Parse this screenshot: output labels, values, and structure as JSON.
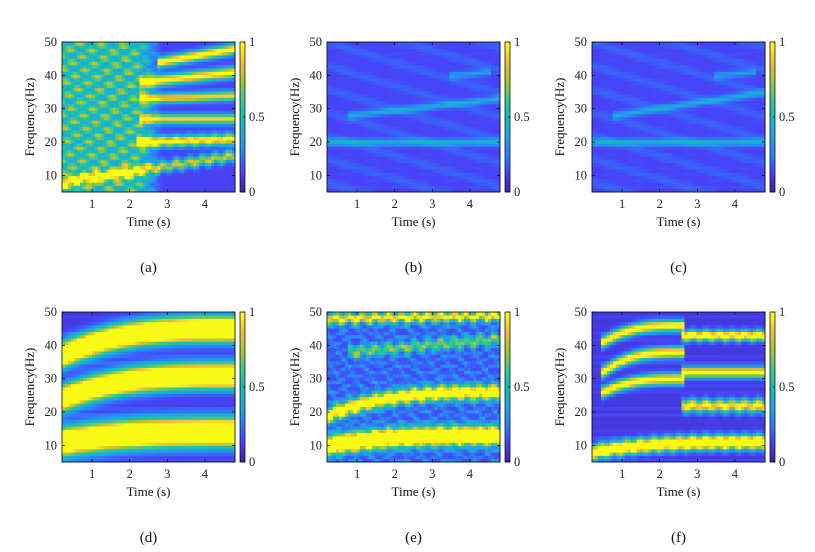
{
  "figure": {
    "colormap": [
      "#3e26a8",
      "#4743f8",
      "#2c82f9",
      "#1fa8de",
      "#13bfb5",
      "#3dcb85",
      "#a6c731",
      "#f2bc38",
      "#f9fb15"
    ],
    "colorbar_ticks": [
      "0",
      "0.5",
      "1"
    ],
    "colorbar_range": [
      0,
      1
    ]
  },
  "chart_data": [
    {
      "type": "heatmap",
      "panel": "(a)",
      "caption": "(a)",
      "xlabel": "Time (s)",
      "ylabel": "Frequency(Hz)",
      "xlim": [
        0.2,
        4.8
      ],
      "ylim": [
        5,
        50
      ],
      "xticks": [
        1,
        2,
        3,
        4
      ],
      "xtick_labels": [
        "1",
        "2",
        "3",
        "4"
      ],
      "yticks": [
        10,
        20,
        30,
        40,
        50
      ],
      "ytick_labels": [
        "10",
        "20",
        "30",
        "40",
        "50"
      ],
      "pattern": "dense-crosshatch-then-bands",
      "ridges": [
        {
          "start": [
            2.2,
            20
          ],
          "end": [
            4.8,
            21
          ],
          "width": 1.6,
          "amp": 0.9,
          "wiggle": 0.2
        },
        {
          "start": [
            2.3,
            27
          ],
          "end": [
            4.8,
            27
          ],
          "width": 1.4,
          "amp": 0.8
        },
        {
          "start": [
            2.3,
            33
          ],
          "end": [
            4.8,
            34
          ],
          "width": 1.4,
          "amp": 0.8
        },
        {
          "start": [
            2.3,
            38
          ],
          "end": [
            4.8,
            41
          ],
          "width": 1.6,
          "amp": 0.9
        },
        {
          "start": [
            2.8,
            44
          ],
          "end": [
            4.8,
            48
          ],
          "width": 1.5,
          "amp": 0.95
        },
        {
          "start": [
            0.2,
            8
          ],
          "end": [
            4.8,
            16
          ],
          "width": 1.5,
          "amp": 0.7,
          "wiggle": 0.5
        }
      ]
    },
    {
      "type": "heatmap",
      "panel": "(b)",
      "caption": "(b)",
      "xlabel": "Time (s)",
      "ylabel": "Frequency(Hz)",
      "xlim": [
        0.2,
        4.8
      ],
      "ylim": [
        5,
        50
      ],
      "xticks": [
        1,
        2,
        3,
        4
      ],
      "xtick_labels": [
        "1",
        "2",
        "3",
        "4"
      ],
      "yticks": [
        10,
        20,
        30,
        40,
        50
      ],
      "ytick_labels": [
        "10",
        "20",
        "30",
        "40",
        "50"
      ],
      "pattern": "faint-stripes",
      "ridges": [
        {
          "start": [
            0.2,
            20
          ],
          "end": [
            4.8,
            20
          ],
          "width": 1.0,
          "amp": 0.3
        },
        {
          "start": [
            0.8,
            28
          ],
          "end": [
            4.8,
            33
          ],
          "width": 1.0,
          "amp": 0.25
        },
        {
          "start": [
            3.5,
            40
          ],
          "end": [
            4.5,
            41
          ],
          "width": 1.0,
          "amp": 0.2
        }
      ]
    },
    {
      "type": "heatmap",
      "panel": "(c)",
      "caption": "(c)",
      "xlabel": "Time (s)",
      "ylabel": "Frequency(Hz)",
      "xlim": [
        0.2,
        4.8
      ],
      "ylim": [
        5,
        50
      ],
      "xticks": [
        1,
        2,
        3,
        4
      ],
      "xtick_labels": [
        "1",
        "2",
        "3",
        "4"
      ],
      "yticks": [
        10,
        20,
        30,
        40,
        50
      ],
      "ytick_labels": [
        "10",
        "20",
        "30",
        "40",
        "50"
      ],
      "pattern": "faint-stripes",
      "ridges": [
        {
          "start": [
            0.2,
            20
          ],
          "end": [
            4.8,
            20
          ],
          "width": 1.0,
          "amp": 0.3
        },
        {
          "start": [
            0.8,
            28
          ],
          "end": [
            4.8,
            35
          ],
          "width": 1.0,
          "amp": 0.25
        },
        {
          "start": [
            3.5,
            40
          ],
          "end": [
            4.5,
            41
          ],
          "width": 1.0,
          "amp": 0.2
        }
      ]
    },
    {
      "type": "heatmap",
      "panel": "(d)",
      "caption": "(d)",
      "xlabel": "Time (s)",
      "ylabel": "Frequency(Hz)",
      "xlim": [
        0.2,
        4.8
      ],
      "ylim": [
        5,
        50
      ],
      "xticks": [
        1,
        2,
        3,
        4
      ],
      "xtick_labels": [
        "1",
        "2",
        "3",
        "4"
      ],
      "yticks": [
        10,
        20,
        30,
        40,
        50
      ],
      "ytick_labels": [
        "10",
        "20",
        "30",
        "40",
        "50"
      ],
      "pattern": "clean",
      "ridges": [
        {
          "start": [
            0.2,
            11
          ],
          "end": [
            4.8,
            14
          ],
          "width": 4.0,
          "amp": 1.6,
          "curve": true
        },
        {
          "start": [
            0.2,
            24
          ],
          "end": [
            4.8,
            31
          ],
          "width": 3.5,
          "amp": 1.6,
          "curve": true
        },
        {
          "start": [
            0.2,
            37
          ],
          "end": [
            4.8,
            45
          ],
          "width": 3.5,
          "amp": 1.6,
          "curve": true
        }
      ]
    },
    {
      "type": "heatmap",
      "panel": "(e)",
      "caption": "(e)",
      "xlabel": "Time (s)",
      "ylabel": "Frequency(Hz)",
      "xlim": [
        0.2,
        4.8
      ],
      "ylim": [
        5,
        50
      ],
      "xticks": [
        1,
        2,
        3,
        4
      ],
      "xtick_labels": [
        "1",
        "2",
        "3",
        "4"
      ],
      "yticks": [
        10,
        20,
        30,
        40,
        50
      ],
      "ytick_labels": [
        "10",
        "20",
        "30",
        "40",
        "50"
      ],
      "pattern": "speckle",
      "ridges": [
        {
          "start": [
            0.2,
            10
          ],
          "end": [
            4.8,
            13
          ],
          "width": 2.5,
          "amp": 1.5,
          "curve": true,
          "wiggle": 0.3
        },
        {
          "start": [
            0.2,
            19
          ],
          "end": [
            4.8,
            26
          ],
          "width": 2.0,
          "amp": 1.1,
          "curve": true,
          "wiggle": 0.4
        },
        {
          "start": [
            0.8,
            38
          ],
          "end": [
            4.8,
            42
          ],
          "width": 1.5,
          "amp": 0.5,
          "wiggle": 0.8
        },
        {
          "start": [
            0.2,
            48
          ],
          "end": [
            4.8,
            49
          ],
          "width": 1.5,
          "amp": 0.8,
          "wiggle": 0.6
        }
      ]
    },
    {
      "type": "heatmap",
      "panel": "(f)",
      "caption": "(f)",
      "xlabel": "Time (s)",
      "ylabel": "Frequency(Hz)",
      "xlim": [
        0.2,
        4.8
      ],
      "ylim": [
        5,
        50
      ],
      "xticks": [
        1,
        2,
        3,
        4
      ],
      "xtick_labels": [
        "1",
        "2",
        "3",
        "4"
      ],
      "yticks": [
        10,
        20,
        30,
        40,
        50
      ],
      "ytick_labels": [
        "10",
        "20",
        "30",
        "40",
        "50"
      ],
      "pattern": "clean",
      "ridges": [
        {
          "start": [
            0.2,
            8
          ],
          "end": [
            4.8,
            11
          ],
          "width": 2.0,
          "amp": 1.3,
          "curve": true,
          "wiggle": 0.3
        },
        {
          "start": [
            0.5,
            26
          ],
          "end": [
            2.6,
            30
          ],
          "width": 1.6,
          "amp": 1.0,
          "curve": true
        },
        {
          "start": [
            0.5,
            32
          ],
          "end": [
            2.6,
            38
          ],
          "width": 1.6,
          "amp": 1.0,
          "curve": true
        },
        {
          "start": [
            0.5,
            41
          ],
          "end": [
            2.6,
            46
          ],
          "width": 1.6,
          "amp": 1.0,
          "curve": true
        },
        {
          "start": [
            2.6,
            22
          ],
          "end": [
            4.8,
            22
          ],
          "width": 1.8,
          "amp": 0.9,
          "wiggle": 0.4
        },
        {
          "start": [
            2.6,
            32
          ],
          "end": [
            4.8,
            32
          ],
          "width": 1.5,
          "amp": 1.0
        },
        {
          "start": [
            2.6,
            43
          ],
          "end": [
            4.8,
            43
          ],
          "width": 1.5,
          "amp": 1.0,
          "wiggle": 0.3
        }
      ]
    }
  ]
}
